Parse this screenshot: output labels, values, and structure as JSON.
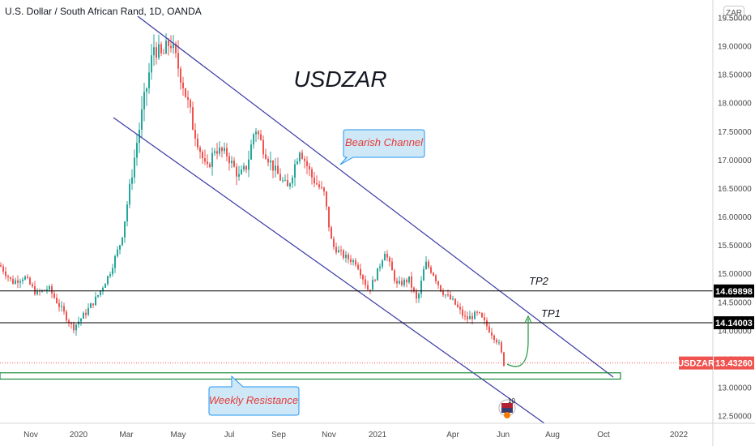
{
  "header": {
    "title": "U.S. Dollar / South African Rand, 1D, OANDA",
    "currency_button": "ZAR"
  },
  "colors": {
    "channel": "#3a3aa6",
    "up_candle": "#26a69a",
    "down_candle": "#ef5350",
    "support": "#1b8a3a",
    "current_price": "#ef5350",
    "callout_fill": "#cfe8f7",
    "callout_border": "#2196f3",
    "callout_text": "#e53935"
  },
  "chart_data": {
    "type": "candlestick",
    "symbol": "USDZAR",
    "title": "USDZAR",
    "y_ticks": [
      "12.50000",
      "13.00000",
      "13.50000",
      "14.00000",
      "14.50000",
      "15.00000",
      "15.50000",
      "16.00000",
      "16.50000",
      "17.00000",
      "17.50000",
      "18.00000",
      "18.50000",
      "19.00000",
      "19.50000"
    ],
    "x_ticks": [
      "Nov",
      "2020",
      "Mar",
      "May",
      "Jul",
      "Sep",
      "Nov",
      "2021",
      "Apr",
      "Jun",
      "Aug",
      "Oct",
      "2022"
    ],
    "ylim": [
      12.3,
      19.6
    ],
    "price_path": [
      [
        0,
        15.15
      ],
      [
        15,
        14.85
      ],
      [
        30,
        14.95
      ],
      [
        45,
        14.65
      ],
      [
        60,
        14.75
      ],
      [
        75,
        14.4
      ],
      [
        90,
        14.05
      ],
      [
        105,
        14.3
      ],
      [
        120,
        14.6
      ],
      [
        135,
        15.0
      ],
      [
        150,
        15.6
      ],
      [
        160,
        16.5
      ],
      [
        170,
        17.4
      ],
      [
        180,
        18.2
      ],
      [
        190,
        19.0
      ],
      [
        200,
        18.8
      ],
      [
        210,
        19.1
      ],
      [
        225,
        18.4
      ],
      [
        240,
        17.5
      ],
      [
        255,
        16.8
      ],
      [
        265,
        17.2
      ],
      [
        280,
        17.1
      ],
      [
        295,
        16.7
      ],
      [
        305,
        16.9
      ],
      [
        315,
        17.6
      ],
      [
        325,
        17.2
      ],
      [
        340,
        16.8
      ],
      [
        355,
        16.5
      ],
      [
        370,
        17.2
      ],
      [
        385,
        16.7
      ],
      [
        400,
        16.4
      ],
      [
        410,
        15.5
      ],
      [
        425,
        15.3
      ],
      [
        440,
        15.2
      ],
      [
        455,
        14.7
      ],
      [
        465,
        15.0
      ],
      [
        475,
        15.4
      ],
      [
        490,
        14.8
      ],
      [
        505,
        14.9
      ],
      [
        515,
        14.5
      ],
      [
        525,
        15.2
      ],
      [
        535,
        15.0
      ],
      [
        545,
        14.7
      ],
      [
        560,
        14.5
      ],
      [
        575,
        14.2
      ],
      [
        590,
        14.3
      ],
      [
        605,
        14.0
      ],
      [
        615,
        13.8
      ],
      [
        622,
        13.43
      ]
    ],
    "current_price": {
      "label": "USDZAR",
      "value": "13.43260"
    },
    "levels": [
      {
        "name": "TP2",
        "value": "14.69898"
      },
      {
        "name": "TP1",
        "value": "14.14003"
      }
    ],
    "support_zone": [
      13.15,
      13.26
    ],
    "annotations": {
      "channel": "Bearish Channel",
      "support": "Weekly Resistance",
      "tp1": "TP1",
      "tp2": "TP2"
    },
    "event_badge": "10"
  }
}
